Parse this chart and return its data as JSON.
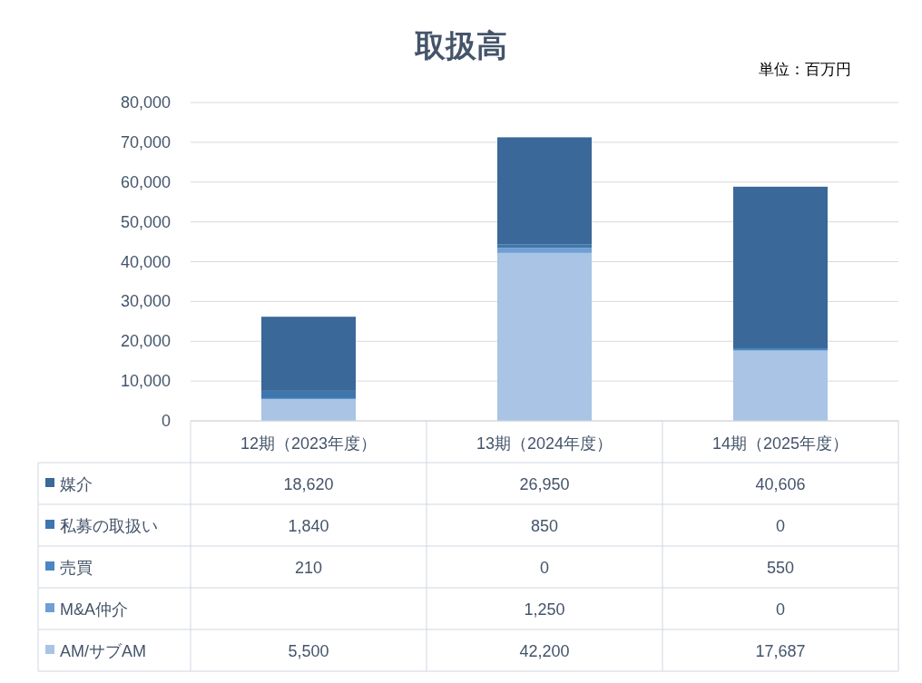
{
  "chart_data": {
    "type": "bar",
    "title": "取扱高",
    "annotations": [
      "単位：百万円"
    ],
    "categories": [
      "12期（2023年度）",
      "13期（2024年度）",
      "14期（2025年度）"
    ],
    "stacked": true,
    "grid": "y",
    "legend": "bottom left",
    "ylim": [
      0,
      80000
    ],
    "yticks": [
      {
        "value": 0,
        "label": "0"
      },
      {
        "value": 10000,
        "label": "10,000"
      },
      {
        "value": 20000,
        "label": "20,000"
      },
      {
        "value": 30000,
        "label": "30,000"
      },
      {
        "value": 40000,
        "label": "40,000"
      },
      {
        "value": 50000,
        "label": "50,000"
      },
      {
        "value": 60000,
        "label": "60,000"
      },
      {
        "value": 70000,
        "label": "70,000"
      },
      {
        "value": 80000,
        "label": "80,000"
      }
    ],
    "series": [
      {
        "name": "AM/サブAM",
        "color": "#a9c4e4",
        "values": [
          5500,
          42200,
          17687
        ],
        "value_labels": [
          "5,500",
          "42,200",
          "17,687"
        ]
      },
      {
        "name": "M&A仲介",
        "color": "#6f9fd3",
        "values": [
          null,
          1250,
          0
        ],
        "value_labels": [
          null,
          "1,250",
          "0"
        ]
      },
      {
        "name": "売買",
        "color": "#4a86c2",
        "values": [
          210,
          0,
          550
        ],
        "value_labels": [
          "210",
          "0",
          "550"
        ]
      },
      {
        "name": "私募の取扱い",
        "color": "#3f76ad",
        "values": [
          1840,
          850,
          0
        ],
        "value_labels": [
          "1,840",
          "850",
          "0"
        ]
      },
      {
        "name": "媒介",
        "color": "#3a6898",
        "values": [
          18620,
          26950,
          40606
        ],
        "value_labels": [
          "18,620",
          "26,950",
          "40,606"
        ]
      }
    ]
  }
}
